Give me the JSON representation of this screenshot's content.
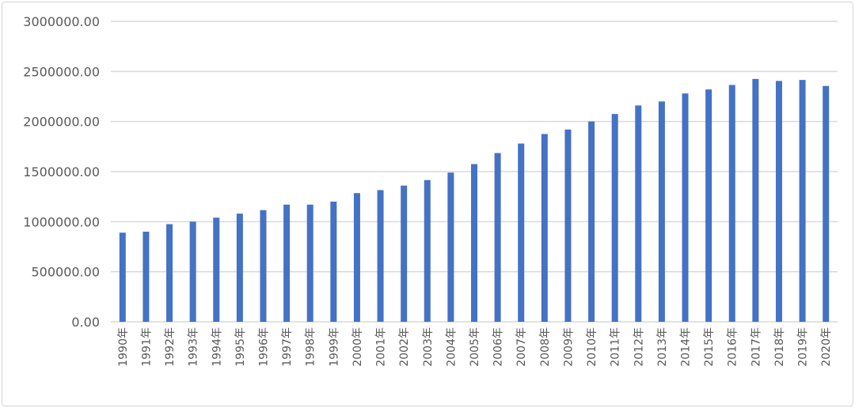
{
  "chart_data": {
    "type": "bar",
    "title": "",
    "xlabel": "",
    "ylabel": "",
    "ylim": [
      0,
      3000000
    ],
    "y_ticks": [
      0,
      500000,
      1000000,
      1500000,
      2000000,
      2500000,
      3000000
    ],
    "y_tick_labels": [
      "0.00",
      "500000.00",
      "1000000.00",
      "1500000.00",
      "2000000.00",
      "2500000.00",
      "3000000.00"
    ],
    "grid": true,
    "legend": "none",
    "bar_color": "#4472c4",
    "categories": [
      "1990年",
      "1991年",
      "1992年",
      "1993年",
      "1994年",
      "1995年",
      "1996年",
      "1997年",
      "1998年",
      "1999年",
      "2000年",
      "2001年",
      "2002年",
      "2003年",
      "2004年",
      "2005年",
      "2006年",
      "2007年",
      "2008年",
      "2009年",
      "2010年",
      "2011年",
      "2012年",
      "2013年",
      "2014年",
      "2015年",
      "2016年",
      "2017年",
      "2018年",
      "2019年",
      "2020年"
    ],
    "values": [
      890000,
      900000,
      975000,
      1000000,
      1040000,
      1080000,
      1115000,
      1170000,
      1170000,
      1200000,
      1285000,
      1315000,
      1360000,
      1415000,
      1490000,
      1575000,
      1685000,
      1780000,
      1875000,
      1920000,
      2000000,
      2075000,
      2160000,
      2200000,
      2280000,
      2320000,
      2365000,
      2425000,
      2405000,
      2415000,
      2355000
    ]
  }
}
